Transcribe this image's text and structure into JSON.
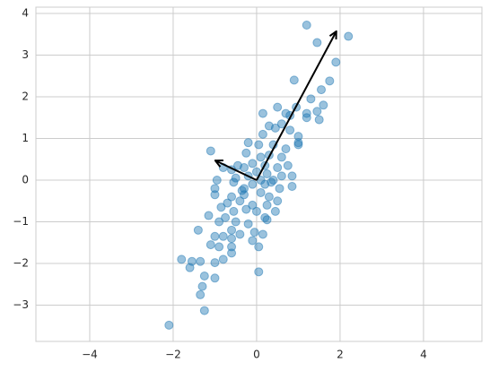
{
  "chart_data": {
    "type": "scatter",
    "x": [
      1.2,
      2.2,
      1.45,
      1.9,
      1.75,
      0.9,
      1.55,
      1.3,
      1.6,
      1.45,
      1.2,
      1.2,
      1.5,
      0.8,
      0.95,
      0.7,
      0.5,
      0.15,
      1.0,
      1.0,
      1.0,
      0.8,
      0.6,
      0.3,
      0.45,
      0.15,
      -0.2,
      0.05,
      0.4,
      0.7,
      0.6,
      0.3,
      0.1,
      -0.25,
      -0.45,
      -1.1,
      -0.8,
      -0.6,
      -0.3,
      -0.1,
      0.2,
      0.5,
      0.75,
      0.6,
      0.85,
      0.85,
      0.4,
      0.2,
      0.1,
      -0.1,
      -0.3,
      -0.55,
      -0.6,
      -0.95,
      -1.0,
      -1.0,
      -0.4,
      -0.1,
      0.3,
      0.5,
      0.55,
      0.45,
      0.25,
      0.0,
      -0.25,
      -0.55,
      -0.85,
      -0.75,
      -0.5,
      -0.2,
      0.2,
      0.25,
      -0.9,
      -0.6,
      -0.4,
      -0.05,
      -0.1,
      0.05,
      0.15,
      -0.6,
      -0.8,
      -1.0,
      -1.15,
      -1.4,
      -1.1,
      -0.9,
      -0.6,
      -0.6,
      -0.8,
      -1.0,
      -1.55,
      -1.6,
      -1.8,
      -1.35,
      -1.25,
      -1.3,
      -1.35,
      -1.0,
      -1.25,
      -2.1,
      0.05,
      -0.35,
      -0.2,
      0.0,
      0.25,
      -0.5,
      -0.3,
      0.1,
      -0.7,
      0.35
    ],
    "values": [
      3.72,
      3.45,
      3.3,
      2.83,
      2.38,
      2.4,
      2.17,
      1.95,
      1.8,
      1.65,
      1.6,
      1.5,
      1.45,
      1.55,
      1.75,
      1.6,
      1.75,
      1.6,
      1.05,
      0.9,
      0.85,
      1.2,
      1.35,
      1.3,
      1.25,
      1.1,
      0.9,
      0.85,
      0.85,
      0.75,
      0.55,
      0.6,
      0.55,
      0.65,
      0.35,
      0.7,
      0.3,
      0.25,
      0.3,
      0.4,
      0.35,
      0.3,
      0.35,
      0.1,
      0.1,
      -0.15,
      0.0,
      -0.1,
      -0.3,
      -0.1,
      -0.2,
      -0.05,
      -0.4,
      0.0,
      -0.2,
      -0.35,
      -0.5,
      -0.6,
      -0.4,
      -0.5,
      -0.2,
      -0.75,
      -0.6,
      -0.75,
      -0.7,
      -0.75,
      -0.65,
      -0.9,
      -1.0,
      -1.05,
      -0.9,
      -0.95,
      -1.0,
      -1.2,
      -1.3,
      -1.25,
      -1.45,
      -1.6,
      -1.3,
      -1.4,
      -1.35,
      -1.35,
      -0.85,
      -1.2,
      -1.55,
      -1.6,
      -1.6,
      -1.75,
      -1.9,
      -1.98,
      -1.95,
      -2.1,
      -1.9,
      -1.95,
      -2.3,
      -2.55,
      -2.75,
      -2.35,
      -3.13,
      -3.48,
      -2.2,
      -0.25,
      0.1,
      0.2,
      0.15,
      0.05,
      -0.35,
      0.0,
      -0.55,
      -0.05
    ],
    "color": "#1f77b4",
    "arrows": [
      {
        "start": [
          0,
          0
        ],
        "end": [
          1.91,
          3.57
        ]
      },
      {
        "start": [
          0,
          0
        ],
        "end": [
          -0.99,
          0.47
        ]
      }
    ],
    "arrow_color": "#000000",
    "xlim": [
      -5.29,
      5.4
    ],
    "ylim": [
      -3.87,
      4.15
    ],
    "xticks": [
      {
        "value": -4,
        "label": "−4"
      },
      {
        "value": -2,
        "label": "−2"
      },
      0,
      2,
      4
    ],
    "yticks": [
      {
        "value": -3,
        "label": "−3"
      },
      {
        "value": -2,
        "label": "−2"
      },
      {
        "value": -1,
        "label": "−1"
      },
      0,
      1,
      2,
      3,
      4
    ],
    "grid": true
  }
}
